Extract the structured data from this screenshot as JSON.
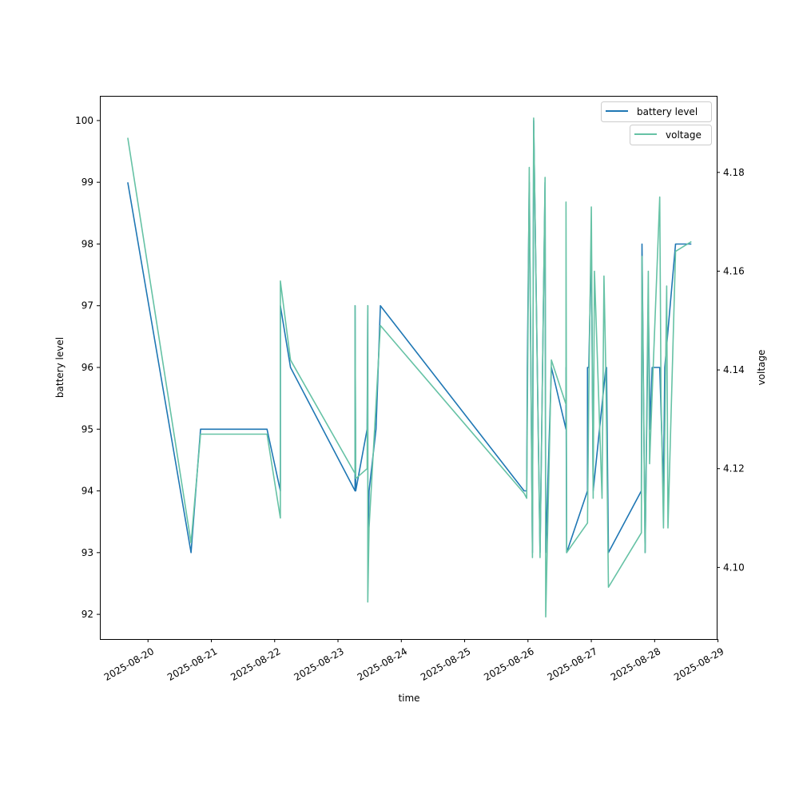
{
  "chart_data": {
    "type": "line",
    "xlabel": "time",
    "ylabel_left": "battery level",
    "ylabel_right": "voltage",
    "x_ticks": [
      "2025-08-20",
      "2025-08-21",
      "2025-08-22",
      "2025-08-23",
      "2025-08-24",
      "2025-08-25",
      "2025-08-26",
      "2025-08-27",
      "2025-08-28",
      "2025-08-29"
    ],
    "xlim_days": [
      -0.76,
      8.98
    ],
    "ylim_left": [
      91.6,
      100.4
    ],
    "yticks_left": [
      92,
      93,
      94,
      95,
      96,
      97,
      98,
      99,
      100
    ],
    "ylim_right": [
      4.0855,
      4.1955
    ],
    "yticks_right": [
      "4.10",
      "4.12",
      "4.14",
      "4.16",
      "4.18"
    ],
    "legend": {
      "placement": "top-right",
      "entries": [
        "battery level",
        "voltage"
      ]
    },
    "series": [
      {
        "name": "battery level",
        "axis": "left",
        "color": "#1f77b4",
        "x": [
          -0.32,
          0.68,
          0.83,
          1.88,
          2.09,
          2.09,
          2.25,
          3.27,
          3.27,
          3.28,
          3.46,
          3.47,
          3.47,
          3.49,
          3.6,
          3.67,
          5.94,
          5.98,
          5.99,
          6.02,
          6.07,
          6.09,
          6.19,
          6.27,
          6.28,
          6.37,
          6.6,
          6.6,
          6.61,
          6.94,
          6.94,
          6.96,
          7.0,
          7.03,
          7.23,
          7.24,
          7.27,
          7.79,
          7.8,
          7.82,
          7.85,
          7.9,
          7.93,
          7.96,
          8.03,
          8.08,
          8.14,
          8.16,
          8.33,
          8.58
        ],
        "y": [
          99,
          93,
          95,
          95,
          94,
          97,
          96,
          94,
          97,
          94,
          95,
          97,
          93,
          94,
          95,
          97,
          94,
          94,
          96,
          99,
          93,
          100,
          93,
          99,
          93,
          96,
          95,
          96,
          93,
          94,
          96,
          96,
          98,
          94,
          96,
          96,
          93,
          94,
          98,
          96,
          93,
          97,
          95,
          96,
          96,
          96,
          94,
          96,
          98,
          98
        ]
      },
      {
        "name": "voltage",
        "axis": "right",
        "color": "#66c2a5",
        "x": [
          -0.32,
          0.68,
          0.83,
          1.88,
          2.09,
          2.09,
          2.25,
          3.27,
          3.27,
          3.28,
          3.46,
          3.47,
          3.47,
          3.49,
          3.67,
          5.94,
          5.98,
          6.02,
          6.07,
          6.09,
          6.19,
          6.27,
          6.28,
          6.37,
          6.6,
          6.6,
          6.61,
          6.94,
          6.96,
          7.0,
          7.03,
          7.05,
          7.17,
          7.2,
          7.23,
          7.27,
          7.79,
          7.8,
          7.85,
          7.9,
          7.92,
          7.96,
          8.08,
          8.1,
          8.14,
          8.19,
          8.21,
          8.33,
          8.58
        ],
        "y": [
          4.187,
          4.105,
          4.127,
          4.127,
          4.11,
          4.158,
          4.142,
          4.119,
          4.153,
          4.118,
          4.12,
          4.153,
          4.093,
          4.108,
          4.149,
          4.115,
          4.114,
          4.181,
          4.102,
          4.191,
          4.102,
          4.179,
          4.09,
          4.142,
          4.133,
          4.174,
          4.103,
          4.109,
          4.135,
          4.173,
          4.114,
          4.16,
          4.114,
          4.159,
          4.139,
          4.096,
          4.107,
          4.163,
          4.103,
          4.16,
          4.121,
          4.135,
          4.175,
          4.135,
          4.108,
          4.157,
          4.108,
          4.164,
          4.166
        ]
      }
    ]
  }
}
